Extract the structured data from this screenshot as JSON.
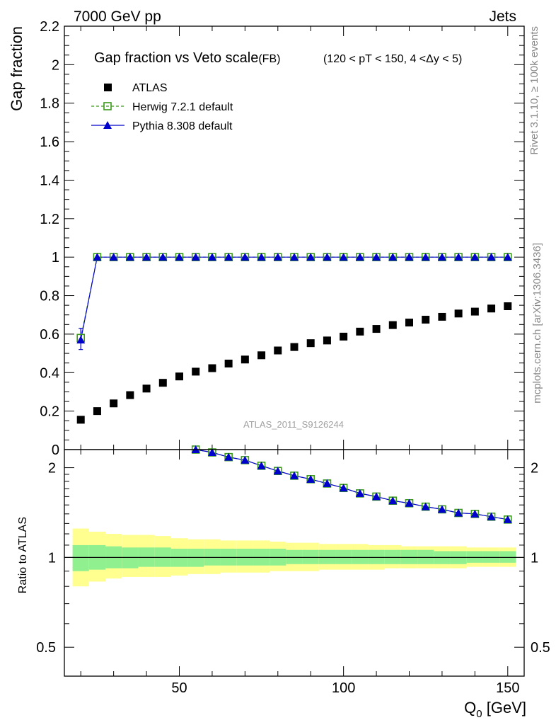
{
  "header": {
    "left": "7000 GeV pp",
    "right": "Jets"
  },
  "side_labels": {
    "rivet": "Rivet 3.1.10, ≥ 100k events",
    "mcplots": "mcplots.cern.ch [arXiv:1306.3436]"
  },
  "watermark": "ATLAS_2011_S9126244",
  "colors": {
    "atlas": "#000000",
    "herwig": "#3a9a1a",
    "pythia": "#0000cc",
    "band_inner": "#90f090",
    "band_outer": "#ffff90"
  },
  "chart_data": [
    {
      "type": "scatter",
      "title": "Gap fraction vs Veto scale",
      "title_suffix": "(FB)",
      "subtitle": "(120 < pT < 150, 4 <Δy < 5)",
      "ylabel": "Gap fraction",
      "xlabel": "Q0 [GeV]",
      "xlim": [
        15,
        155
      ],
      "ylim": [
        0,
        2.2
      ],
      "y_ticks": [
        "0",
        "0.2",
        "0.4",
        "0.6",
        "0.8",
        "1",
        "1.2",
        "1.4",
        "1.6",
        "1.8",
        "2",
        "2.2"
      ],
      "legend_position": "top-left",
      "x": [
        20,
        25,
        30,
        35,
        40,
        45,
        50,
        55,
        60,
        65,
        70,
        75,
        80,
        85,
        90,
        95,
        100,
        105,
        110,
        115,
        120,
        125,
        130,
        135,
        140,
        145,
        150
      ],
      "series": [
        {
          "name": "ATLAS",
          "marker": "square",
          "values": [
            0.155,
            0.2,
            0.24,
            0.283,
            0.317,
            0.347,
            0.38,
            0.405,
            0.423,
            0.447,
            0.468,
            0.49,
            0.515,
            0.533,
            0.553,
            0.567,
            0.587,
            0.613,
            0.627,
            0.647,
            0.66,
            0.675,
            0.69,
            0.707,
            0.717,
            0.733,
            0.745
          ]
        },
        {
          "name": "Herwig 7.2.1 default",
          "marker": "open-square",
          "values": [
            0.58,
            1,
            1,
            1,
            1,
            1,
            1,
            1,
            1,
            1,
            1,
            1,
            1,
            1,
            1,
            1,
            1,
            1,
            1,
            1,
            1,
            1,
            1,
            1,
            1,
            1,
            1
          ]
        },
        {
          "name": "Pythia 8.308 default",
          "marker": "triangle",
          "values": [
            0.57,
            1,
            1,
            1,
            1,
            1,
            1,
            1,
            1,
            1,
            1,
            1,
            1,
            1,
            1,
            1,
            1,
            1,
            1,
            1,
            1,
            1,
            1,
            1,
            1,
            1,
            1
          ],
          "first_point_error": [
            0.52,
            0.63
          ]
        }
      ]
    },
    {
      "type": "line",
      "ylabel": "Ratio to ATLAS",
      "xlabel": "Q0 [GeV]",
      "xlim": [
        15,
        155
      ],
      "ylim": [
        0.4,
        2.3
      ],
      "y_scale": "log",
      "y_ticks": [
        "0.5",
        "1",
        "2"
      ],
      "x_ticks": [
        "50",
        "100",
        "150"
      ],
      "x": [
        55,
        60,
        65,
        70,
        75,
        80,
        85,
        90,
        95,
        100,
        105,
        110,
        115,
        120,
        125,
        130,
        135,
        140,
        145,
        150
      ],
      "series": [
        {
          "name": "Herwig 7.2.1 default",
          "values": [
            2.3,
            2.25,
            2.17,
            2.12,
            2.03,
            1.95,
            1.88,
            1.83,
            1.77,
            1.71,
            1.64,
            1.6,
            1.55,
            1.52,
            1.48,
            1.45,
            1.41,
            1.4,
            1.37,
            1.34
          ]
        },
        {
          "name": "Pythia 8.308 default",
          "values": [
            2.3,
            2.25,
            2.17,
            2.12,
            2.03,
            1.95,
            1.88,
            1.83,
            1.77,
            1.71,
            1.64,
            1.6,
            1.55,
            1.52,
            1.48,
            1.45,
            1.41,
            1.4,
            1.37,
            1.34
          ]
        }
      ],
      "bands": {
        "x_edges": [
          17.5,
          22.5,
          27.5,
          32.5,
          37.5,
          42.5,
          47.5,
          52.5,
          57.5,
          62.5,
          67.5,
          72.5,
          77.5,
          82.5,
          87.5,
          92.5,
          97.5,
          102.5,
          107.5,
          112.5,
          117.5,
          122.5,
          127.5,
          132.5,
          137.5,
          142.5,
          147.5,
          152.5
        ],
        "inner_up": [
          1.1,
          1.1,
          1.09,
          1.08,
          1.08,
          1.08,
          1.07,
          1.07,
          1.07,
          1.07,
          1.07,
          1.07,
          1.07,
          1.06,
          1.06,
          1.06,
          1.06,
          1.06,
          1.06,
          1.06,
          1.06,
          1.06,
          1.05,
          1.05,
          1.05,
          1.05,
          1.05
        ],
        "inner_down": [
          0.9,
          0.91,
          0.92,
          0.92,
          0.93,
          0.93,
          0.93,
          0.93,
          0.94,
          0.94,
          0.94,
          0.94,
          0.94,
          0.95,
          0.95,
          0.95,
          0.95,
          0.95,
          0.95,
          0.95,
          0.95,
          0.95,
          0.95,
          0.95,
          0.96,
          0.96,
          0.96
        ],
        "outer_up": [
          1.25,
          1.22,
          1.2,
          1.19,
          1.19,
          1.18,
          1.16,
          1.15,
          1.15,
          1.14,
          1.14,
          1.14,
          1.13,
          1.12,
          1.12,
          1.11,
          1.11,
          1.11,
          1.1,
          1.1,
          1.09,
          1.09,
          1.09,
          1.09,
          1.08,
          1.08,
          1.08
        ],
        "outer_down": [
          0.8,
          0.83,
          0.85,
          0.86,
          0.86,
          0.86,
          0.87,
          0.88,
          0.88,
          0.89,
          0.89,
          0.89,
          0.9,
          0.9,
          0.9,
          0.91,
          0.91,
          0.91,
          0.91,
          0.92,
          0.92,
          0.92,
          0.92,
          0.92,
          0.93,
          0.93,
          0.93
        ]
      }
    }
  ]
}
